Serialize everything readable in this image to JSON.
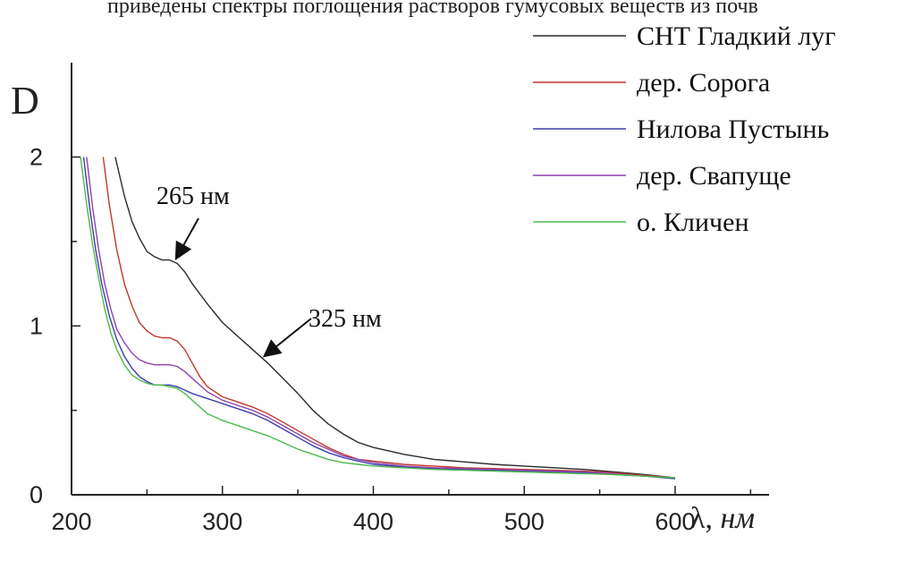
{
  "top_text": "приведены спектры поглощения растворов гумусовых веществ из почв",
  "chart_data": {
    "type": "line",
    "xlabel": "λ, нм",
    "ylabel": "D",
    "xlim": [
      200,
      600
    ],
    "ylim": [
      0,
      2.4
    ],
    "xticks": [
      200,
      300,
      400,
      500,
      600
    ],
    "yticks": [
      0,
      1,
      2
    ],
    "grid": false,
    "legend_position": "top-right",
    "series": [
      {
        "name": "СНТ Гладкий луг",
        "color": "#2b2b2b",
        "points": [
          [
            229,
            2.0
          ],
          [
            235,
            1.77
          ],
          [
            240,
            1.62
          ],
          [
            245,
            1.52
          ],
          [
            250,
            1.44
          ],
          [
            255,
            1.41
          ],
          [
            260,
            1.39
          ],
          [
            265,
            1.39
          ],
          [
            270,
            1.37
          ],
          [
            275,
            1.32
          ],
          [
            280,
            1.25
          ],
          [
            290,
            1.13
          ],
          [
            300,
            1.02
          ],
          [
            310,
            0.94
          ],
          [
            320,
            0.86
          ],
          [
            325,
            0.82
          ],
          [
            330,
            0.78
          ],
          [
            340,
            0.69
          ],
          [
            350,
            0.6
          ],
          [
            360,
            0.5
          ],
          [
            370,
            0.42
          ],
          [
            380,
            0.36
          ],
          [
            390,
            0.31
          ],
          [
            400,
            0.28
          ],
          [
            420,
            0.24
          ],
          [
            440,
            0.21
          ],
          [
            460,
            0.195
          ],
          [
            480,
            0.18
          ],
          [
            500,
            0.17
          ],
          [
            520,
            0.16
          ],
          [
            540,
            0.15
          ],
          [
            560,
            0.135
          ],
          [
            580,
            0.12
          ],
          [
            600,
            0.1
          ]
        ]
      },
      {
        "name": "дер. Сорога",
        "color": "#c0392b",
        "points": [
          [
            221,
            2.0
          ],
          [
            225,
            1.72
          ],
          [
            230,
            1.45
          ],
          [
            235,
            1.25
          ],
          [
            240,
            1.12
          ],
          [
            245,
            1.02
          ],
          [
            250,
            0.97
          ],
          [
            255,
            0.94
          ],
          [
            260,
            0.93
          ],
          [
            265,
            0.93
          ],
          [
            270,
            0.91
          ],
          [
            275,
            0.86
          ],
          [
            280,
            0.78
          ],
          [
            285,
            0.7
          ],
          [
            290,
            0.64
          ],
          [
            300,
            0.58
          ],
          [
            310,
            0.55
          ],
          [
            320,
            0.52
          ],
          [
            330,
            0.48
          ],
          [
            340,
            0.43
          ],
          [
            350,
            0.38
          ],
          [
            360,
            0.33
          ],
          [
            370,
            0.28
          ],
          [
            380,
            0.24
          ],
          [
            390,
            0.21
          ],
          [
            400,
            0.2
          ],
          [
            420,
            0.18
          ],
          [
            440,
            0.17
          ],
          [
            460,
            0.16
          ],
          [
            480,
            0.155
          ],
          [
            500,
            0.15
          ],
          [
            520,
            0.145
          ],
          [
            540,
            0.14
          ],
          [
            560,
            0.13
          ],
          [
            580,
            0.115
          ],
          [
            600,
            0.1
          ]
        ]
      },
      {
        "name": "Нилова Пустынь",
        "color": "#3d3db0",
        "points": [
          [
            208,
            2.0
          ],
          [
            212,
            1.7
          ],
          [
            216,
            1.45
          ],
          [
            220,
            1.25
          ],
          [
            225,
            1.06
          ],
          [
            230,
            0.92
          ],
          [
            235,
            0.82
          ],
          [
            240,
            0.75
          ],
          [
            245,
            0.7
          ],
          [
            250,
            0.67
          ],
          [
            255,
            0.65
          ],
          [
            260,
            0.65
          ],
          [
            265,
            0.65
          ],
          [
            270,
            0.64
          ],
          [
            275,
            0.62
          ],
          [
            280,
            0.6
          ],
          [
            290,
            0.57
          ],
          [
            300,
            0.54
          ],
          [
            310,
            0.51
          ],
          [
            320,
            0.48
          ],
          [
            330,
            0.44
          ],
          [
            340,
            0.39
          ],
          [
            350,
            0.34
          ],
          [
            360,
            0.29
          ],
          [
            370,
            0.25
          ],
          [
            380,
            0.22
          ],
          [
            390,
            0.2
          ],
          [
            400,
            0.18
          ],
          [
            420,
            0.165
          ],
          [
            440,
            0.155
          ],
          [
            460,
            0.15
          ],
          [
            480,
            0.145
          ],
          [
            500,
            0.14
          ],
          [
            520,
            0.135
          ],
          [
            540,
            0.13
          ],
          [
            560,
            0.12
          ],
          [
            580,
            0.11
          ],
          [
            600,
            0.095
          ]
        ]
      },
      {
        "name": "дер. Свапуще",
        "color": "#8e44ad",
        "points": [
          [
            210,
            2.0
          ],
          [
            214,
            1.7
          ],
          [
            218,
            1.45
          ],
          [
            222,
            1.25
          ],
          [
            226,
            1.1
          ],
          [
            230,
            0.98
          ],
          [
            235,
            0.9
          ],
          [
            240,
            0.84
          ],
          [
            245,
            0.8
          ],
          [
            250,
            0.78
          ],
          [
            255,
            0.77
          ],
          [
            260,
            0.77
          ],
          [
            265,
            0.77
          ],
          [
            270,
            0.76
          ],
          [
            275,
            0.73
          ],
          [
            280,
            0.69
          ],
          [
            290,
            0.61
          ],
          [
            300,
            0.56
          ],
          [
            310,
            0.53
          ],
          [
            320,
            0.5
          ],
          [
            330,
            0.46
          ],
          [
            340,
            0.41
          ],
          [
            350,
            0.36
          ],
          [
            360,
            0.31
          ],
          [
            370,
            0.27
          ],
          [
            380,
            0.23
          ],
          [
            390,
            0.21
          ],
          [
            400,
            0.19
          ],
          [
            420,
            0.17
          ],
          [
            440,
            0.16
          ],
          [
            460,
            0.155
          ],
          [
            480,
            0.15
          ],
          [
            500,
            0.145
          ],
          [
            520,
            0.14
          ],
          [
            540,
            0.135
          ],
          [
            560,
            0.125
          ],
          [
            580,
            0.11
          ],
          [
            600,
            0.1
          ]
        ]
      },
      {
        "name": "о. Кличен",
        "color": "#4cbb4c",
        "points": [
          [
            206,
            2.0
          ],
          [
            210,
            1.72
          ],
          [
            214,
            1.48
          ],
          [
            218,
            1.28
          ],
          [
            222,
            1.1
          ],
          [
            226,
            0.96
          ],
          [
            230,
            0.86
          ],
          [
            235,
            0.77
          ],
          [
            240,
            0.71
          ],
          [
            245,
            0.68
          ],
          [
            250,
            0.66
          ],
          [
            255,
            0.65
          ],
          [
            260,
            0.65
          ],
          [
            265,
            0.64
          ],
          [
            270,
            0.63
          ],
          [
            275,
            0.6
          ],
          [
            280,
            0.56
          ],
          [
            290,
            0.48
          ],
          [
            300,
            0.44
          ],
          [
            310,
            0.41
          ],
          [
            320,
            0.38
          ],
          [
            330,
            0.35
          ],
          [
            340,
            0.31
          ],
          [
            350,
            0.27
          ],
          [
            360,
            0.24
          ],
          [
            370,
            0.21
          ],
          [
            380,
            0.19
          ],
          [
            390,
            0.18
          ],
          [
            400,
            0.17
          ],
          [
            420,
            0.16
          ],
          [
            440,
            0.15
          ],
          [
            460,
            0.145
          ],
          [
            480,
            0.14
          ],
          [
            500,
            0.135
          ],
          [
            520,
            0.13
          ],
          [
            540,
            0.125
          ],
          [
            560,
            0.12
          ],
          [
            580,
            0.11
          ],
          [
            600,
            0.1
          ]
        ]
      }
    ],
    "annotations": [
      {
        "text": "265 нм",
        "x": 268,
        "y": 1.38
      },
      {
        "text": "325 нм",
        "x": 325,
        "y": 0.8
      }
    ]
  }
}
